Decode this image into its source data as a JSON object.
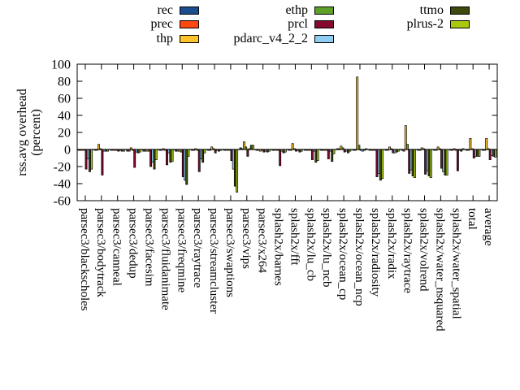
{
  "legend": {
    "columns": [
      [
        "rec",
        "prec",
        "thp"
      ],
      [
        "ethp",
        "prcl",
        "pdarc_v4_2_2"
      ],
      [
        "ttmo",
        "plrus-2"
      ]
    ]
  },
  "chart_data": {
    "type": "bar",
    "title": "",
    "ylabel_lines": [
      "rss.avg overhead",
      "(percent)"
    ],
    "ylim": [
      -60,
      100
    ],
    "yticks": [
      100,
      80,
      60,
      40,
      20,
      0,
      -20,
      -40,
      -60
    ],
    "grid": false,
    "legend_position": "top",
    "categories": [
      "parsec3/blackscholes",
      "parsec3/bodytrack",
      "parsec3/canneal",
      "parsec3/dedup",
      "parsec3/facesim",
      "parsec3/fluidanimate",
      "parsec3/freqmine",
      "parsec3/raytrace",
      "parsec3/streamcluster",
      "parsec3/swaptions",
      "parsec3/vips",
      "parsec3/x264",
      "splash2x/barnes",
      "splash2x/fft",
      "splash2x/lu_cb",
      "splash2x/lu_ncb",
      "splash2x/ocean_cp",
      "splash2x/ocean_ncp",
      "splash2x/radiosity",
      "splash2x/radix",
      "splash2x/raytrace",
      "splash2x/volrend",
      "splash2x/water_nsquared",
      "splash2x/water_spatial",
      "total",
      "average"
    ],
    "series": [
      {
        "name": "rec",
        "color": "#1b4e8e",
        "values": [
          -1,
          -1,
          -1,
          -2,
          -2,
          -1,
          -2,
          -1,
          -1,
          -1,
          2,
          -1,
          -1,
          -1,
          -1,
          -1,
          1,
          -1,
          -1,
          -1,
          -1,
          -1,
          -1,
          -1,
          -1,
          -1
        ]
      },
      {
        "name": "prec",
        "color": "#fc4711",
        "values": [
          -1,
          -1,
          -1,
          -2,
          -2,
          -1,
          -2,
          -1,
          -1,
          -1,
          1,
          -1,
          -1,
          -1,
          -1,
          -1,
          1,
          -1,
          -1,
          -1,
          -2,
          -1,
          -1,
          -1,
          -1,
          -1
        ]
      },
      {
        "name": "thp",
        "color": "#fcc32c",
        "values": [
          -1,
          6,
          -1,
          2,
          -2,
          1,
          -2,
          1,
          3,
          -1,
          9,
          -2,
          -1,
          7,
          -1,
          -1,
          4,
          85,
          -1,
          3,
          28,
          2,
          3,
          1,
          13,
          13
        ]
      },
      {
        "name": "ethp",
        "color": "#60a028",
        "values": [
          -1,
          1,
          -1,
          -1,
          -2,
          -1,
          -3,
          -1,
          1,
          -1,
          3,
          -1,
          -1,
          1,
          -1,
          -1,
          2,
          5,
          -1,
          1,
          6,
          1,
          1,
          -1,
          1,
          1
        ]
      },
      {
        "name": "prcl",
        "color": "#850b2d",
        "values": [
          -23,
          -30,
          -2,
          -21,
          -20,
          -18,
          -32,
          -26,
          -4,
          -13,
          -8,
          -3,
          -19,
          -2,
          -12,
          -11,
          -3,
          -1,
          -32,
          -4,
          -28,
          -29,
          -22,
          -25,
          -10,
          -12
        ]
      },
      {
        "name": "pdarc_v4_2_2",
        "color": "#8fcdf2",
        "values": [
          -11,
          -2,
          -1,
          -3,
          -15,
          -4,
          -36,
          -11,
          -1,
          -23,
          1,
          -2,
          -2,
          -1,
          -2,
          -2,
          -2,
          -2,
          -28,
          -4,
          -24,
          -25,
          -26,
          -1,
          -8,
          -7
        ]
      },
      {
        "name": "ttmo",
        "color": "#3d4a0d",
        "values": [
          -26,
          -2,
          -2,
          -4,
          -23,
          -15,
          -41,
          -15,
          -2,
          -43,
          5,
          -3,
          -4,
          -3,
          -15,
          -14,
          -4,
          -1,
          -36,
          -3,
          -31,
          -31,
          -30,
          -2,
          -8,
          -8
        ]
      },
      {
        "name": "plrus-2",
        "color": "#a9c90e",
        "values": [
          -23,
          -2,
          -2,
          -3,
          -12,
          -14,
          -8,
          -4,
          -1,
          -50,
          5,
          -2,
          -3,
          -2,
          -13,
          -5,
          -2,
          1,
          -34,
          -2,
          -33,
          -33,
          -30,
          1,
          -8,
          -9
        ]
      }
    ]
  }
}
